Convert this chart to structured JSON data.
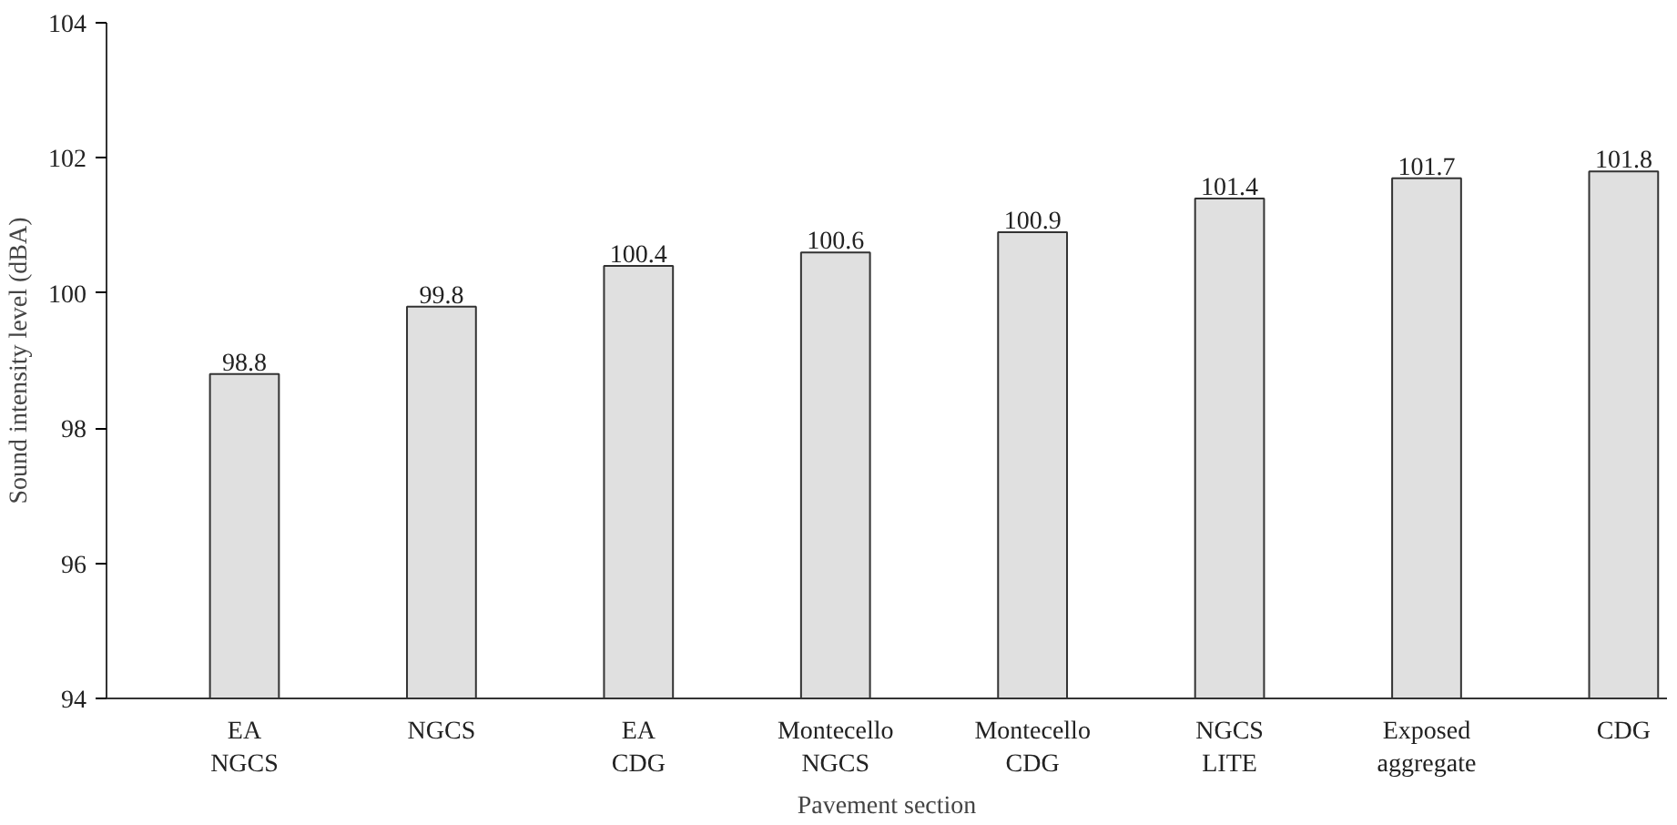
{
  "chart_data": {
    "type": "bar",
    "xlabel": "Pavement section",
    "ylabel": "Sound intensity level (dBA)",
    "categories": [
      "EA\nNGCS",
      "NGCS",
      "EA\nCDG",
      "Montecello\nNGCS",
      "Montecello\nCDG",
      "NGCS\nLITE",
      "Exposed\naggregate",
      "CDG"
    ],
    "values": [
      98.8,
      99.8,
      100.4,
      100.6,
      100.9,
      101.4,
      101.7,
      101.8
    ],
    "color": "#e0e0e0",
    "ylim": [
      94,
      104
    ],
    "yticks": [
      94,
      96,
      98,
      100,
      102,
      104
    ],
    "grid": false,
    "data_labels": true
  }
}
